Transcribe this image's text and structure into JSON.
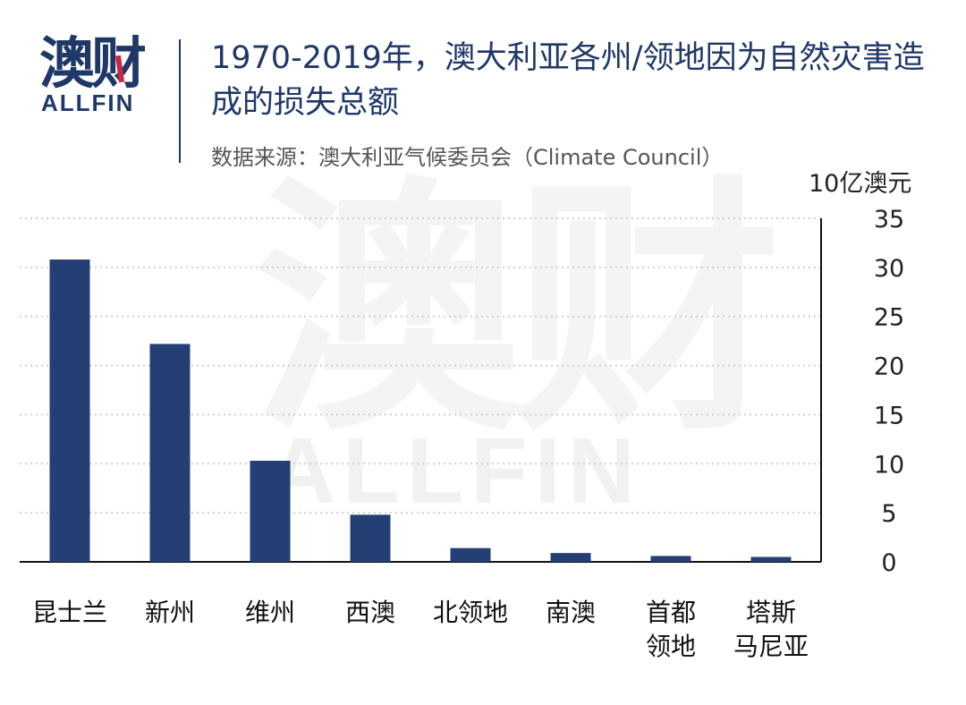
{
  "logo": {
    "cn": "澳财",
    "en": "ALLFIN"
  },
  "watermark": {
    "cn": "澳财",
    "en": "ALLFIN"
  },
  "header": {
    "title": "1970-2019年，澳大利亚各州/领地因为自然灾害造成的损失总额",
    "source": "数据来源：澳大利亚气候委员会（Climate Council）"
  },
  "colors": {
    "bar": "#243f74",
    "axis": "#111111",
    "grid": "#cfcfcf",
    "title": "#1f3868"
  },
  "chart_data": {
    "type": "bar",
    "title": "1970-2019年，澳大利亚各州/领地因为自然灾害造成的损失总额",
    "ylabel": "10亿澳元",
    "xlabel": "",
    "categories": [
      [
        "昆士兰"
      ],
      [
        "新州"
      ],
      [
        "维州"
      ],
      [
        "西澳"
      ],
      [
        "北领地"
      ],
      [
        "南澳"
      ],
      [
        "首都",
        "领地"
      ],
      [
        "塔斯",
        "马尼亚"
      ]
    ],
    "values": [
      30.8,
      22.2,
      10.3,
      4.8,
      1.4,
      0.9,
      0.6,
      0.5
    ],
    "ylim": [
      0,
      35
    ],
    "yticks": [
      0,
      5,
      10,
      15,
      20,
      25,
      30,
      35
    ],
    "grid": true,
    "y_axis_side": "right"
  }
}
